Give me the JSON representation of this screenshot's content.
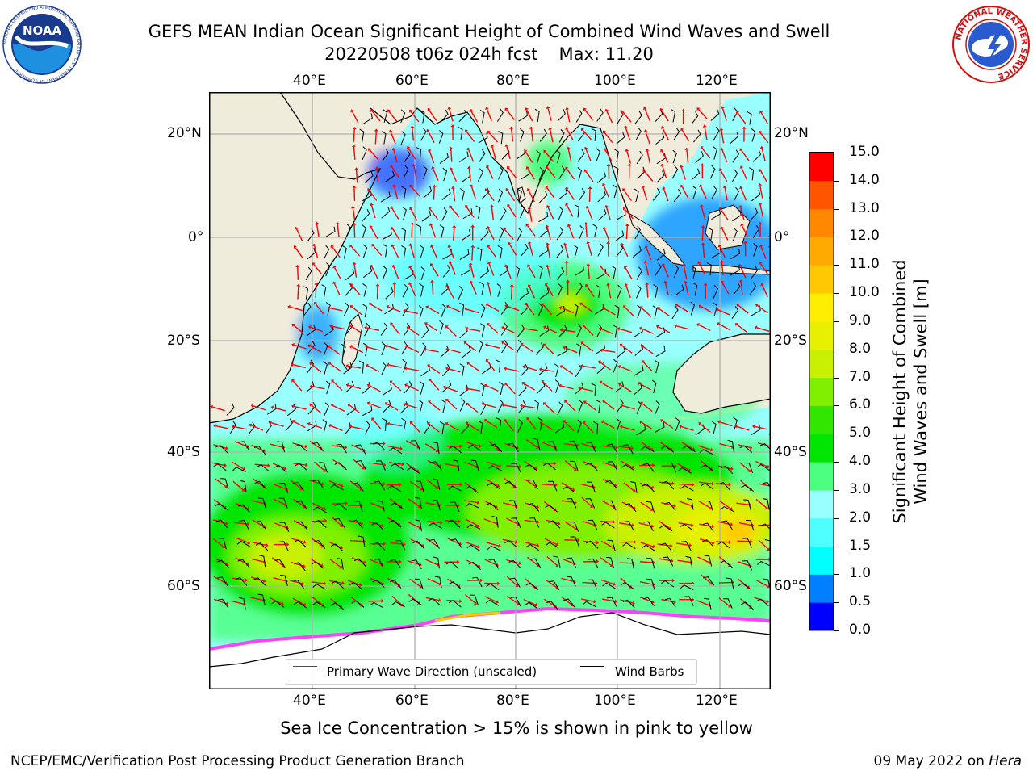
{
  "title_line1": "GEFS MEAN Indian Ocean Significant Height of Combined Wind Waves and Swell",
  "title_run": "20220508 t06z 024h fcst",
  "title_max": "Max: 11.20",
  "logos": {
    "left": {
      "name": "noaa-logo",
      "text": "NOAA",
      "ring_text": "NATIONAL OCEANIC AND ATMOSPHERIC ADMINISTRATION · U.S. DEPARTMENT OF COMMERCE"
    },
    "right": {
      "name": "nws-logo",
      "ring_text": "NATIONAL WEATHER SERVICE"
    }
  },
  "map": {
    "lon_range": [
      20,
      130
    ],
    "lat_range": [
      -74,
      28
    ],
    "lon_ticks": [
      "40°E",
      "60°E",
      "80°E",
      "100°E",
      "120°E"
    ],
    "lat_ticks_left": [
      "20°N",
      "0°",
      "20°S",
      "40°S",
      "60°S"
    ],
    "lat_ticks_right": [
      "20°N",
      "0°",
      "20°S",
      "40°S",
      "60°S"
    ],
    "grid": true,
    "land_color": "#efecdc",
    "ice_note": "Sea Ice Concentration > 15% is shown in pink to yellow"
  },
  "colorbar": {
    "label_line1": "Significant Height of Combined",
    "label_line2": "Wind Waves and Swell [m]",
    "ticks": [
      "0.0",
      "0.5",
      "1.0",
      "1.5",
      "2.0",
      "3.0",
      "4.0",
      "5.0",
      "6.0",
      "7.0",
      "8.0",
      "9.0",
      "10.0",
      "11.0",
      "12.0",
      "13.0",
      "14.0",
      "15.0"
    ],
    "colors": [
      "#0000ff",
      "#007fff",
      "#00ffff",
      "#4dffff",
      "#99ffff",
      "#4dff80",
      "#00e600",
      "#33e600",
      "#80f000",
      "#c8f000",
      "#e6f000",
      "#ffee00",
      "#ffc800",
      "#ffaa00",
      "#ff8800",
      "#ff5500",
      "#ff0000"
    ]
  },
  "legend": {
    "wave_label": "Primary Wave Direction (unscaled)",
    "barb_label": "Wind Barbs",
    "wave_color": "#ff0000",
    "barb_color": "#000000"
  },
  "footer_left": "NCEP/EMC/Verification Post Processing Product Generation Branch",
  "footer_date": "09 May 2022 on ",
  "footer_host": "Hera"
}
